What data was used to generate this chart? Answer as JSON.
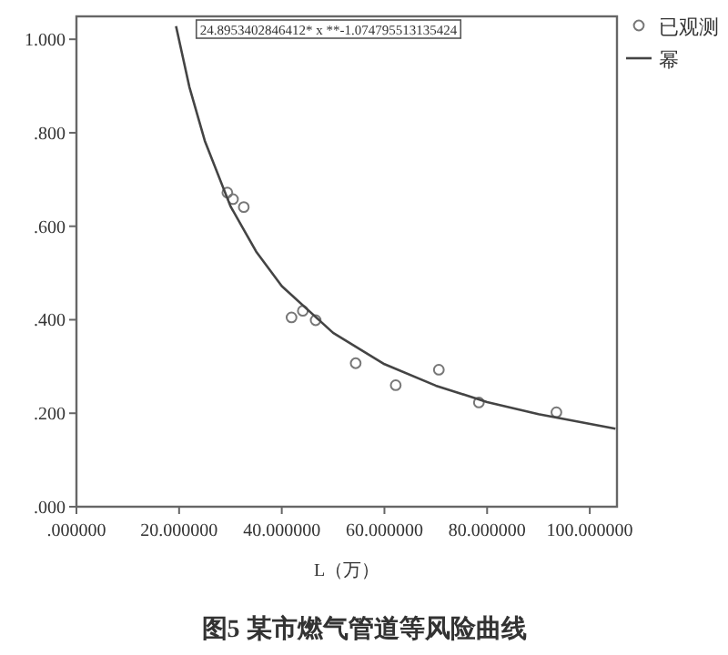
{
  "chart_data": {
    "type": "scatter",
    "title": "图5 某市燃气管道等风险曲线",
    "xlabel": "L（万）",
    "annotations": [
      "24.8953402846412* x **-1.074795513135424"
    ],
    "xlim": [
      0,
      105.3
    ],
    "ylim": [
      0,
      1.049
    ],
    "xticks": [
      {
        "value": 0,
        "label": ".000000"
      },
      {
        "value": 20,
        "label": "20.000000"
      },
      {
        "value": 40,
        "label": "40.000000"
      },
      {
        "value": 60,
        "label": "60.000000"
      },
      {
        "value": 80,
        "label": "80.000000"
      },
      {
        "value": 100,
        "label": "100.000000"
      }
    ],
    "yticks": [
      {
        "value": 0,
        "label": ".000"
      },
      {
        "value": 0.2,
        "label": ".200"
      },
      {
        "value": 0.4,
        "label": ".400"
      },
      {
        "value": 0.6,
        "label": ".600"
      },
      {
        "value": 0.8,
        "label": ".800"
      },
      {
        "value": 1,
        "label": "1.000"
      }
    ],
    "grid": false,
    "legend": "top right",
    "series": [
      {
        "name": "已观测",
        "marker": "circle",
        "color": "#777777",
        "x": [
          29.4,
          30.5,
          32.6,
          41.9,
          44.1,
          46.6,
          54.4,
          62.2,
          70.6,
          78.4,
          93.5
        ],
        "values": [
          0.672,
          0.658,
          0.641,
          0.405,
          0.419,
          0.399,
          0.307,
          0.26,
          0.293,
          0.223,
          0.202
        ]
      },
      {
        "name": "幂",
        "type": "line",
        "marker": "none",
        "color": "#444444",
        "x": [
          19.4,
          22,
          25,
          30,
          35,
          40,
          50,
          60,
          70,
          80,
          90,
          105
        ],
        "values": [
          1.028,
          0.898,
          0.783,
          0.643,
          0.546,
          0.472,
          0.372,
          0.305,
          0.259,
          0.224,
          0.198,
          0.167
        ]
      }
    ]
  }
}
